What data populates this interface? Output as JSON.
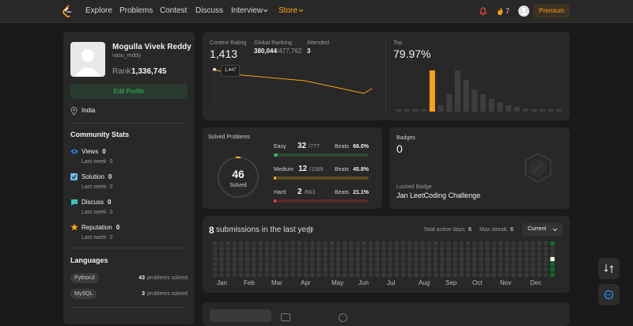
{
  "nav": {
    "links": [
      "Explore",
      "Problems",
      "Contest",
      "Discuss",
      "Interview",
      "Store"
    ],
    "streak": 7,
    "premium": "Premium"
  },
  "profile": {
    "name": "Mogulla Vivek Reddy",
    "username": "vasu_reddy",
    "rank_label": "Rank",
    "rank": "1,336,745",
    "edit": "Edit Profile",
    "location": "India"
  },
  "community": {
    "title": "Community Stats",
    "items": [
      {
        "label": "Views",
        "value": 0,
        "week_label": "Last week",
        "week": 0
      },
      {
        "label": "Solution",
        "value": 0,
        "week_label": "Last week",
        "week": 0
      },
      {
        "label": "Discuss",
        "value": 0,
        "week_label": "Last week",
        "week": 0
      },
      {
        "label": "Reputation",
        "value": 0,
        "week_label": "Last week",
        "week": 0
      }
    ]
  },
  "languages": {
    "title": "Languages",
    "items": [
      {
        "name": "Python3",
        "count": 43,
        "suffix": "problems solved"
      },
      {
        "name": "MySQL",
        "count": 3,
        "suffix": "problems solved"
      }
    ]
  },
  "contest": {
    "rating_label": "Contest Rating",
    "rating": "1,413",
    "ranking_label": "Global Ranking",
    "ranking": "380,044",
    "ranking_total": "/477,762",
    "attended_label": "Attended",
    "attended": 3,
    "tooltip": "1,447",
    "top_label": "Top",
    "top": "79.97%"
  },
  "solved": {
    "title": "Solved Problems",
    "total": 46,
    "total_label": "Solved",
    "levels": [
      {
        "name": "Easy",
        "solved": 32,
        "total": "/777",
        "beats_label": "Beats",
        "beats": "66.0%"
      },
      {
        "name": "Medium",
        "solved": 12,
        "total": "/1589",
        "beats_label": "Beats",
        "beats": "45.8%"
      },
      {
        "name": "Hard",
        "solved": 2,
        "total": "/663",
        "beats_label": "Beats",
        "beats": "21.1%"
      }
    ]
  },
  "badges": {
    "title": "Badges",
    "count": 0,
    "locked_label": "Locked Badge",
    "locked_name": "Jan LeetCoding Challenge"
  },
  "submissions": {
    "count": 8,
    "text": "submissions in the last year",
    "active_label": "Total active days:",
    "active": 6,
    "streak_label": "Max streak:",
    "streak": 6,
    "dropdown": "Current",
    "months": [
      "Jan",
      "Feb",
      "Mar",
      "Apr",
      "May",
      "Jun",
      "Jul",
      "Aug",
      "Sep",
      "Oct",
      "Nov",
      "Dec"
    ]
  }
}
